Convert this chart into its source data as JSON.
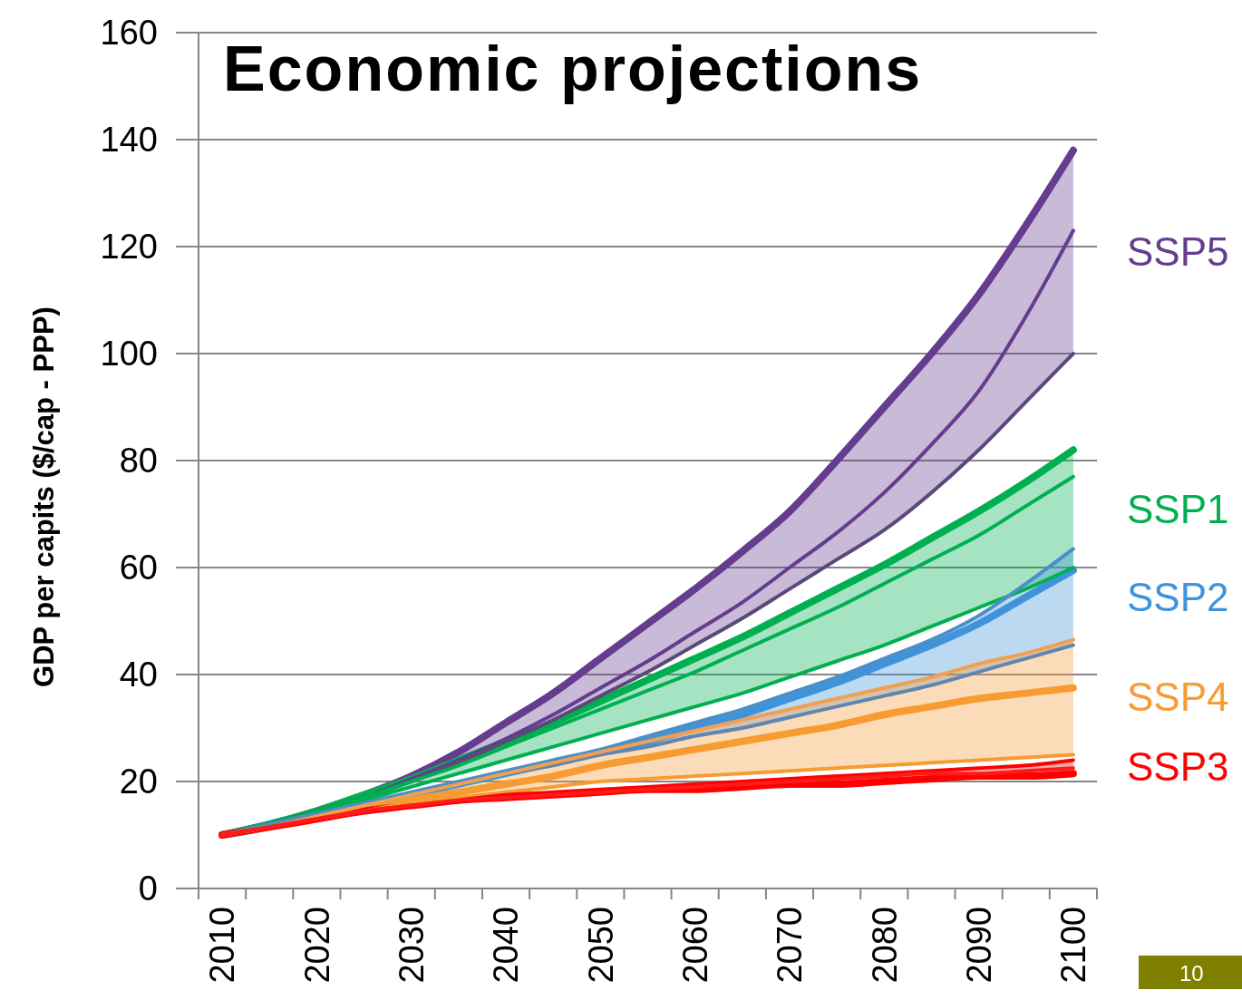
{
  "chart_data": {
    "type": "line",
    "title": "Economic projections",
    "ylabel": "GDP per capits ($/cap - PPP)",
    "categories": [
      "2010",
      null,
      "2020",
      null,
      "2030",
      null,
      "2040",
      null,
      "2050",
      null,
      "2060",
      null,
      "2070",
      null,
      "2080",
      null,
      "2090",
      null,
      "2100"
    ],
    "ylim": [
      0,
      160
    ],
    "yticks": [
      0,
      20,
      40,
      60,
      80,
      100,
      120,
      140,
      160
    ],
    "grid": "y",
    "series": [
      {
        "name": "SSP5",
        "color": "#653c8e",
        "values": [
          10,
          12,
          14.5,
          17.5,
          21,
          25.5,
          31,
          36.5,
          43,
          49.5,
          56,
          63,
          70.5,
          80,
          90,
          100,
          111,
          124,
          138
        ],
        "lower": [
          10,
          12,
          14.5,
          17,
          20,
          23.5,
          27.5,
          31.5,
          36,
          40.5,
          45.5,
          50.5,
          56,
          61.5,
          67,
          74,
          82,
          91,
          100
        ],
        "upper": [
          10,
          12,
          14.5,
          17.5,
          21,
          25.5,
          31,
          36.5,
          43,
          49.5,
          56,
          63,
          70.5,
          80,
          90,
          100,
          111,
          124,
          138
        ]
      },
      {
        "color": "#653c8e",
        "values": [
          10,
          12,
          14.5,
          17,
          20.5,
          24,
          28,
          32.5,
          37.5,
          42.5,
          48,
          53.5,
          60,
          66.5,
          74,
          83,
          93,
          107,
          123
        ]
      },
      {
        "color": "#5a4a7a",
        "values": [
          10,
          12,
          14.5,
          17,
          20,
          23.5,
          27.5,
          31.5,
          36,
          40.5,
          45.5,
          50.5,
          56,
          61.5,
          67,
          74,
          82,
          91,
          100
        ]
      },
      {
        "name": "SSP1",
        "color": "#00b050",
        "values": [
          10,
          12,
          14.5,
          17.5,
          20.5,
          24,
          27.5,
          31,
          35,
          39,
          43,
          47,
          51.5,
          56,
          60.5,
          65.5,
          70.5,
          76,
          82
        ],
        "lower": [
          10,
          12,
          14,
          16.5,
          19,
          21.5,
          24,
          26.5,
          29,
          31.5,
          34,
          36.5,
          39.5,
          42.5,
          45.5,
          49,
          52.5,
          56,
          60
        ],
        "upper": [
          10,
          12,
          14.5,
          17.5,
          20.5,
          24,
          27.5,
          31,
          35,
          39,
          43,
          47,
          51.5,
          56,
          60.5,
          65.5,
          70.5,
          76,
          82
        ]
      },
      {
        "color": "#00b050",
        "values": [
          10,
          12,
          14.5,
          17,
          20,
          23,
          26.5,
          30,
          33.5,
          37,
          40.5,
          44.5,
          48.5,
          52.5,
          57,
          61.5,
          66,
          71.5,
          77
        ]
      },
      {
        "color": "#00b050",
        "values": [
          10,
          12,
          14,
          16.5,
          19,
          21.5,
          24,
          26.5,
          29,
          31.5,
          34,
          36.5,
          39.5,
          42.5,
          45.5,
          49,
          52.5,
          56,
          60
        ]
      },
      {
        "name": "SSP2",
        "color": "#3f93db",
        "values": [
          10,
          11.5,
          13.5,
          15.5,
          17.5,
          19.5,
          21.5,
          23.5,
          25.5,
          27.5,
          30,
          32.5,
          35.5,
          38.5,
          42,
          45.5,
          49.5,
          54.5,
          59.5
        ],
        "lower": [
          10,
          11.5,
          13.5,
          15.5,
          17.5,
          19.5,
          21.5,
          23,
          25,
          26.5,
          28.5,
          30,
          32,
          34,
          36,
          38,
          40.5,
          43,
          45.5
        ],
        "upper": [
          10,
          11.5,
          13.5,
          15.5,
          17.5,
          19.5,
          21.5,
          23.5,
          26,
          28.5,
          31,
          33.5,
          36.5,
          39.5,
          43,
          46.5,
          51,
          57,
          63.5
        ]
      },
      {
        "color": "#4a8fc8",
        "values": [
          10,
          12,
          14,
          16,
          18,
          20,
          22,
          24,
          26,
          28.5,
          31,
          33.5,
          36.5,
          39.5,
          43,
          46.5,
          51,
          57,
          63.5
        ]
      },
      {
        "color": "#5f86b0",
        "values": [
          10,
          11.5,
          13.5,
          15.5,
          17.5,
          19.5,
          21.5,
          23,
          25,
          26.5,
          28.5,
          30,
          32,
          34,
          36,
          38,
          40.5,
          43,
          45.5
        ]
      },
      {
        "name": "SSP4",
        "color": "#f79b33",
        "values": [
          10,
          11.5,
          13,
          15,
          16.5,
          18,
          19.5,
          21,
          23,
          24.5,
          26,
          27.5,
          29,
          30.5,
          32.5,
          34,
          35.5,
          36.5,
          37.5
        ],
        "lower": [
          10,
          11.5,
          13,
          14.5,
          16,
          17,
          18,
          19,
          20,
          20.5,
          21,
          21.5,
          22,
          22.5,
          23,
          23.5,
          24,
          24.5,
          25
        ],
        "upper": [
          10,
          11.5,
          13.5,
          15.5,
          17.5,
          19.5,
          21.5,
          23.5,
          25.5,
          27.5,
          29.5,
          31.5,
          33.5,
          35.5,
          37.5,
          39.5,
          42,
          44,
          46.5
        ]
      },
      {
        "color": "#f0a050",
        "values": [
          10,
          11.5,
          13.5,
          15.5,
          17.5,
          19.5,
          21.5,
          23.5,
          25.5,
          27.5,
          29.5,
          31.5,
          33.5,
          35.5,
          37.5,
          39.5,
          42,
          44,
          46.5
        ]
      },
      {
        "color": "#f79b33",
        "values": [
          10,
          11.5,
          13,
          14.5,
          16,
          17,
          18,
          19,
          20,
          20.5,
          21,
          21.5,
          22,
          22.5,
          23,
          23.5,
          24,
          24.5,
          25
        ]
      },
      {
        "name": "SSP3",
        "color": "#ff0000",
        "values": [
          10,
          11.5,
          13,
          14.5,
          15.5,
          16.5,
          17,
          17.5,
          18,
          18.5,
          18.5,
          19,
          19.5,
          19.5,
          20,
          20.5,
          21,
          21,
          21.5
        ],
        "lower": [
          10,
          11.5,
          13,
          14.5,
          15.5,
          16.5,
          17,
          17.5,
          18,
          18.5,
          18.5,
          19,
          19.5,
          19.5,
          20,
          20.5,
          21,
          21,
          21.5
        ],
        "upper": [
          10,
          11.5,
          13,
          14.5,
          15.5,
          16.5,
          17.5,
          18,
          18.5,
          19,
          19.5,
          20,
          20.5,
          21,
          21.5,
          22,
          22.5,
          23,
          24
        ]
      },
      {
        "color": "#ff0000",
        "values": [
          10,
          11.5,
          13,
          14.5,
          15.5,
          16.5,
          17.5,
          18,
          18.5,
          19,
          19.5,
          20,
          20.5,
          21,
          21.5,
          22,
          22.5,
          23,
          24
        ]
      },
      {
        "color": "#ff1a1a",
        "values": [
          10,
          11.5,
          13,
          14.5,
          15.5,
          16.5,
          17,
          17.5,
          18,
          18.5,
          19,
          19.5,
          20,
          20.5,
          21,
          21.5,
          21.5,
          22,
          22.5
        ]
      }
    ],
    "annotations": [
      "10"
    ]
  }
}
